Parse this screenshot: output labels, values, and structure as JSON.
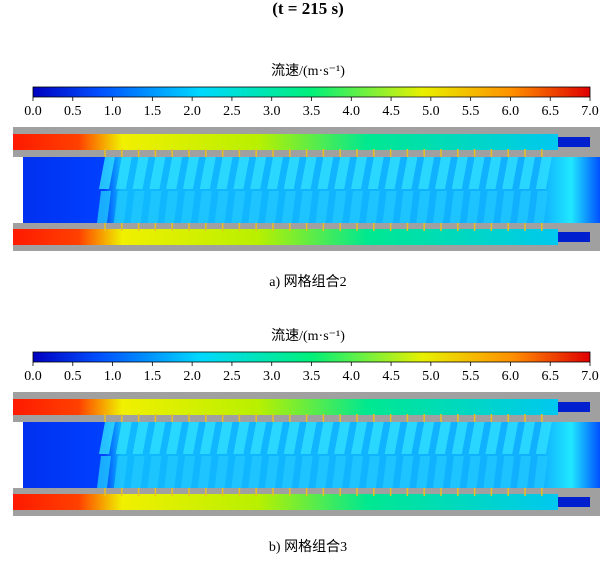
{
  "title": "(t = 215 s)",
  "panels": [
    {
      "colorbar": {
        "label": "流速/(m·s⁻¹)",
        "range": [
          0,
          7
        ],
        "ticks": [
          {
            "value": 0,
            "label": "0.0"
          },
          {
            "value": 0.5,
            "label": "0.5"
          },
          {
            "value": 1,
            "label": "1.0"
          },
          {
            "value": 1.5,
            "label": "1.5"
          },
          {
            "value": 2,
            "label": "2.0"
          },
          {
            "value": 2.5,
            "label": "2.5"
          },
          {
            "value": 3,
            "label": "3.0"
          },
          {
            "value": 3.5,
            "label": "3.5"
          },
          {
            "value": 4,
            "label": "4.0"
          },
          {
            "value": 4.5,
            "label": "4.5"
          },
          {
            "value": 5,
            "label": "5.0"
          },
          {
            "value": 5.5,
            "label": "5.5"
          },
          {
            "value": 6,
            "label": "6.0"
          },
          {
            "value": 6.5,
            "label": "6.5"
          },
          {
            "value": 7,
            "label": "7.0"
          }
        ]
      },
      "caption": "a) 网格组合2"
    },
    {
      "colorbar": {
        "label": "流速/(m·s⁻¹)",
        "range": [
          0,
          7
        ],
        "ticks": [
          {
            "value": 0,
            "label": "0.0"
          },
          {
            "value": 0.5,
            "label": "0.5"
          },
          {
            "value": 1,
            "label": "1.0"
          },
          {
            "value": 1.5,
            "label": "1.5"
          },
          {
            "value": 2,
            "label": "2.0"
          },
          {
            "value": 2.5,
            "label": "2.5"
          },
          {
            "value": 3,
            "label": "3.0"
          },
          {
            "value": 3.5,
            "label": "3.5"
          },
          {
            "value": 4,
            "label": "4.0"
          },
          {
            "value": 4.5,
            "label": "4.5"
          },
          {
            "value": 5,
            "label": "5.0"
          },
          {
            "value": 5.5,
            "label": "5.5"
          },
          {
            "value": 6,
            "label": "6.0"
          },
          {
            "value": 6.5,
            "label": "6.5"
          },
          {
            "value": 7,
            "label": "7.0"
          }
        ]
      },
      "caption": "b) 网格组合3"
    }
  ]
}
